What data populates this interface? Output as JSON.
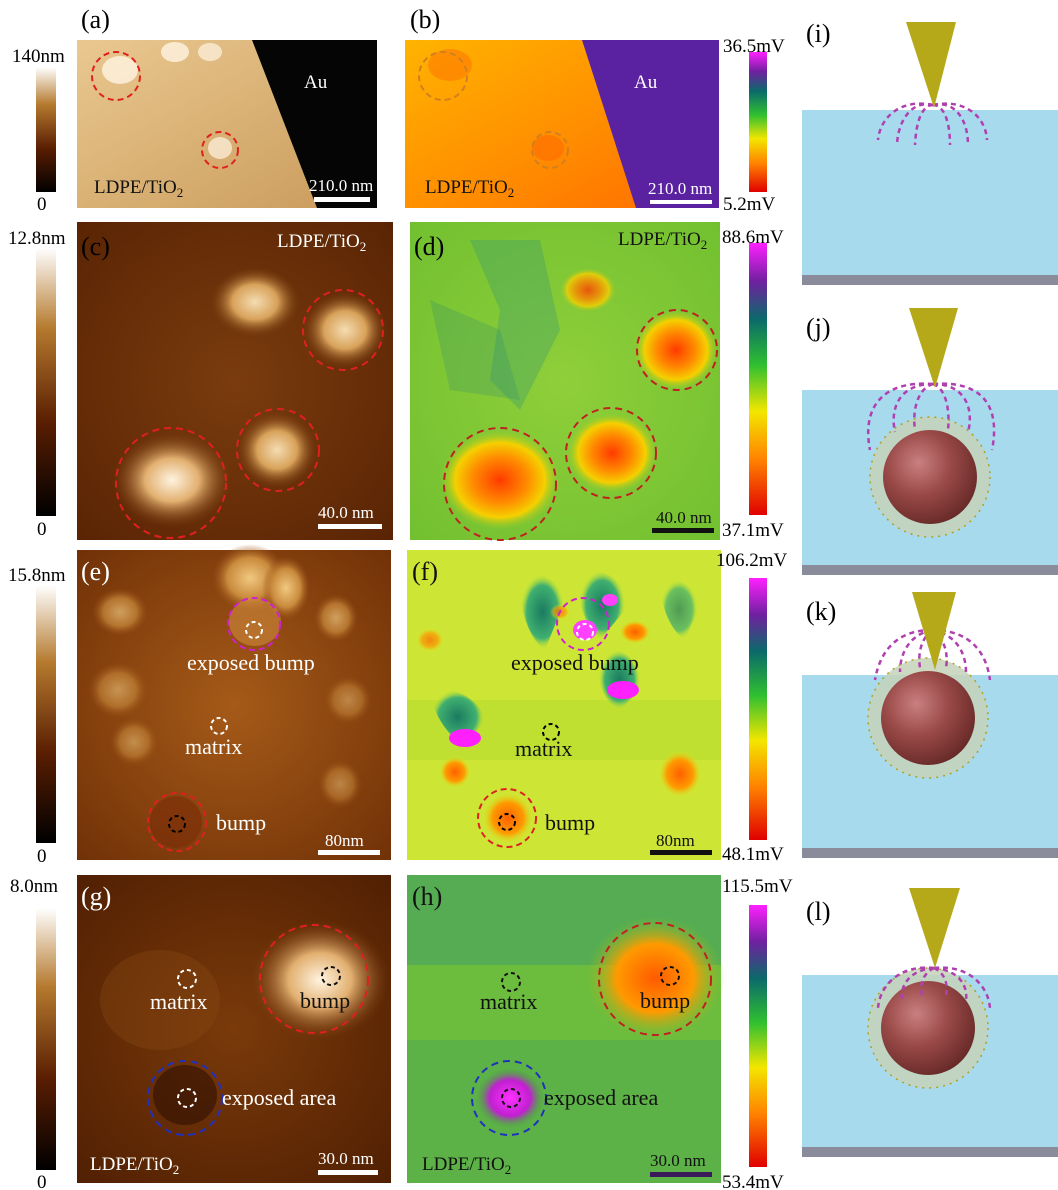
{
  "panels": {
    "a": {
      "label": "(a)",
      "material": "Au",
      "sample": "LDPE/TiO",
      "sample_sub": "2",
      "scalebar": "210.0 nm"
    },
    "b": {
      "label": "(b)",
      "material": "Au",
      "sample": "LDPE/TiO",
      "sample_sub": "2",
      "scalebar": "210.0 nm"
    },
    "c": {
      "label": "(c)",
      "sample": "LDPE/TiO",
      "sample_sub": "2",
      "scalebar": "40.0 nm"
    },
    "d": {
      "label": "(d)",
      "sample": "LDPE/TiO",
      "sample_sub": "2",
      "scalebar": "40.0 nm"
    },
    "e": {
      "label": "(e)",
      "scalebar": "80nm",
      "exposed_bump": "exposed bump",
      "matrix": "matrix",
      "bump": "bump"
    },
    "f": {
      "label": "(f)",
      "scalebar": "80nm",
      "exposed_bump": "exposed bump",
      "matrix": "matrix",
      "bump": "bump"
    },
    "g": {
      "label": "(g)",
      "sample": "LDPE/TiO",
      "sample_sub": "2",
      "scalebar": "30.0 nm",
      "matrix": "matrix",
      "bump": "bump",
      "exposed_area": "exposed area"
    },
    "h": {
      "label": "(h)",
      "sample": "LDPE/TiO",
      "sample_sub": "2",
      "scalebar": "30.0 nm",
      "matrix": "matrix",
      "bump": "bump",
      "exposed_area": "exposed area"
    },
    "i": {
      "label": "(i)"
    },
    "j": {
      "label": "(j)"
    },
    "k": {
      "label": "(k)"
    },
    "l": {
      "label": "(l)"
    }
  },
  "colorbars": {
    "a": {
      "max": "140nm",
      "min": "0"
    },
    "b": {
      "max": "36.5mV",
      "min": "5.2mV"
    },
    "c": {
      "max": "12.8nm",
      "min": "0"
    },
    "d": {
      "max": "88.6mV",
      "min": "37.1mV"
    },
    "e": {
      "max": "15.8nm",
      "min": "0"
    },
    "f": {
      "max": "106.2mV",
      "min": "48.1mV"
    },
    "g": {
      "max": "8.0nm",
      "min": "0"
    },
    "h": {
      "max": "115.5mV",
      "min": "53.4mV"
    }
  },
  "colors": {
    "red_circle": "#e02020",
    "magenta_circle": "#d020d0",
    "blue_circle": "#2030c0",
    "tip": "#b5a91a",
    "film": "#a8daee",
    "substrate": "#8a8c9c",
    "particle": "#9a3f3f",
    "field_lines": "#b040b0"
  }
}
